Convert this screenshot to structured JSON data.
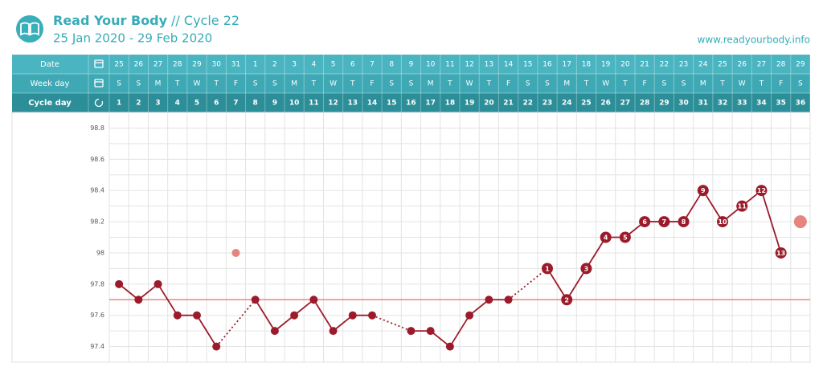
{
  "chart_data": {
    "type": "line",
    "brand": "Read Your Body",
    "cycle": "// Cycle 22",
    "subtitle": "25 Jan 2020 - 29 Feb 2020",
    "url": "www.readyourbody.info",
    "row_labels": [
      "Date",
      "Week day",
      "Cycle day"
    ],
    "categories": [
      "25",
      "26",
      "27",
      "28",
      "29",
      "30",
      "31",
      "1",
      "2",
      "3",
      "4",
      "5",
      "6",
      "7",
      "8",
      "9",
      "10",
      "11",
      "12",
      "13",
      "14",
      "15",
      "16",
      "17",
      "18",
      "19",
      "20",
      "21",
      "22",
      "23",
      "24",
      "25",
      "26",
      "27",
      "28",
      "29"
    ],
    "weekdays": [
      "S",
      "S",
      "M",
      "T",
      "W",
      "T",
      "F",
      "S",
      "S",
      "M",
      "T",
      "W",
      "T",
      "F",
      "S",
      "S",
      "M",
      "T",
      "W",
      "T",
      "F",
      "S",
      "S",
      "M",
      "T",
      "W",
      "T",
      "F",
      "S",
      "S",
      "M",
      "T",
      "W",
      "T",
      "F",
      "S"
    ],
    "cycle_days": [
      1,
      2,
      3,
      4,
      5,
      6,
      7,
      8,
      9,
      10,
      11,
      12,
      13,
      14,
      15,
      16,
      17,
      18,
      19,
      20,
      21,
      22,
      23,
      24,
      25,
      26,
      27,
      28,
      29,
      30,
      31,
      32,
      33,
      34,
      35,
      36
    ],
    "values": [
      97.8,
      97.7,
      97.8,
      97.6,
      97.6,
      97.4,
      null,
      97.7,
      97.5,
      97.6,
      97.7,
      97.5,
      97.6,
      97.6,
      null,
      97.5,
      97.5,
      97.4,
      97.6,
      97.7,
      97.7,
      null,
      97.9,
      97.7,
      97.9,
      98.1,
      98.1,
      98.2,
      98.2,
      98.2,
      98.4,
      98.2,
      98.3,
      98.4,
      98.0,
      null
    ],
    "high_temp_numbers": [
      null,
      null,
      null,
      null,
      null,
      null,
      null,
      null,
      null,
      null,
      null,
      null,
      null,
      null,
      null,
      null,
      null,
      null,
      null,
      null,
      null,
      null,
      1,
      2,
      3,
      4,
      5,
      6,
      7,
      8,
      9,
      10,
      11,
      12,
      13,
      null
    ],
    "excluded_values": [
      null,
      null,
      null,
      null,
      null,
      null,
      98.0,
      null,
      null,
      null,
      null,
      null,
      null,
      null,
      null,
      null,
      null,
      null,
      null,
      null,
      null,
      null,
      null,
      null,
      null,
      null,
      null,
      null,
      null,
      null,
      null,
      null,
      null,
      null,
      null,
      98.2
    ],
    "coverline": 97.7,
    "color": "#9c1b2b",
    "excluded_color": "#e5857d",
    "coverline_color": "#e8877e",
    "ylim": [
      97.3,
      98.9
    ],
    "yticks": [
      97.4,
      97.6,
      97.8,
      98.0,
      98.2,
      98.4,
      98.6,
      98.8
    ],
    "ygrid": [
      97.3,
      97.4,
      97.5,
      97.6,
      97.7,
      97.8,
      97.9,
      98.0,
      98.1,
      98.2,
      98.3,
      98.4,
      98.5,
      98.6,
      98.7,
      98.8,
      98.9
    ],
    "grid": true
  }
}
